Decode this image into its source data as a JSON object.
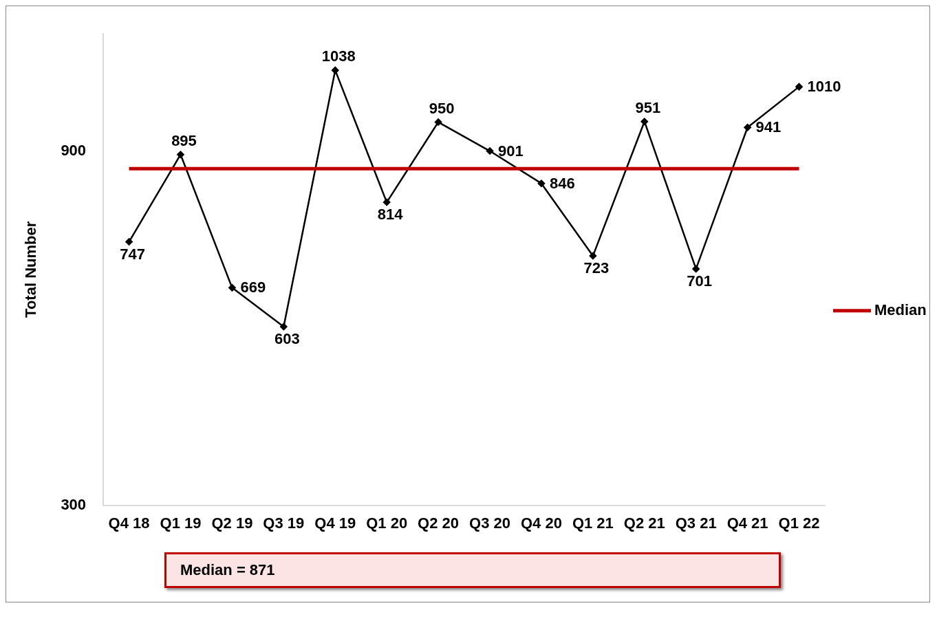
{
  "chart_data": {
    "type": "line",
    "ylabel": "Total Number",
    "categories": [
      "Q4 18",
      "Q1 19",
      "Q2 19",
      "Q3 19",
      "Q4 19",
      "Q1 20",
      "Q2 20",
      "Q3 20",
      "Q4 20",
      "Q1 21",
      "Q2 21",
      "Q3 21",
      "Q4 21",
      "Q1 22"
    ],
    "series": [
      {
        "color": "#000000",
        "values": [
          747,
          895,
          669,
          603,
          1038,
          814,
          950,
          901,
          846,
          723,
          951,
          701,
          941,
          1010
        ]
      }
    ],
    "ylim": [
      300,
      1100
    ],
    "yticks": [
      300,
      900
    ],
    "grid": false,
    "marker": "diamond",
    "line_style": "solid",
    "data_labels": true,
    "ref_lines": [
      {
        "axis": "y",
        "value": 871,
        "label": "Median",
        "color": "#c00000"
      }
    ],
    "annotations": [
      "Median = 871"
    ]
  }
}
